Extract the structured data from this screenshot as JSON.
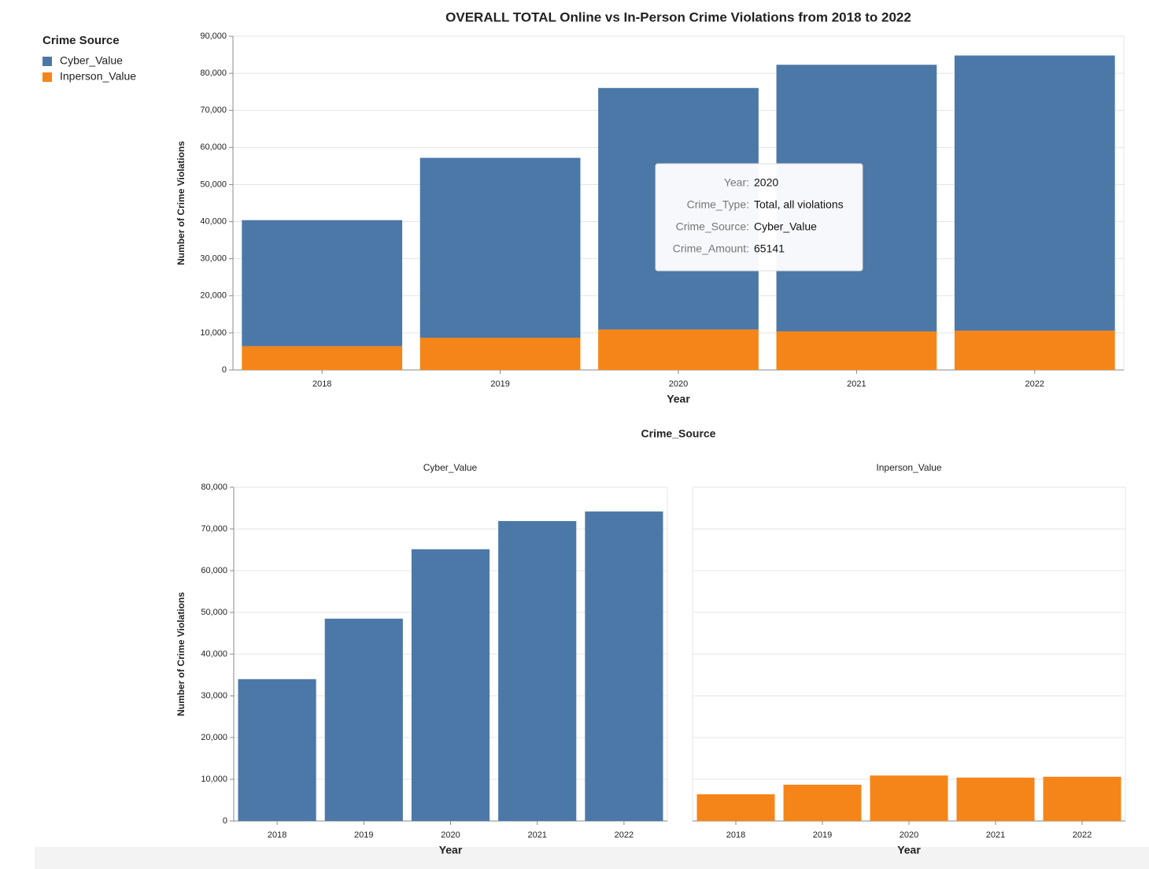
{
  "facet_title": "Crime_Source",
  "chart_data": [
    {
      "type": "stacked_bar",
      "title": "OVERALL TOTAL Online vs In-Person Crime Violations from 2018 to 2022",
      "x_label": "Year",
      "y_label": "Number of Crime Violations",
      "legend_title": "Crime Source",
      "categories": [
        "2018",
        "2019",
        "2020",
        "2021",
        "2022"
      ],
      "series": [
        {
          "name": "Cyber_Value",
          "color": "#4c78a8",
          "values": [
            34000,
            48500,
            65141,
            71900,
            74200
          ]
        },
        {
          "name": "Inperson_Value",
          "color": "#f58518",
          "values": [
            6400,
            8700,
            10900,
            10400,
            10600
          ]
        }
      ],
      "ylim": [
        0,
        90000
      ],
      "yticks": [
        0,
        {
          "value": 10000,
          "label": "10,000"
        },
        {
          "value": 20000,
          "label": "20,000"
        },
        {
          "value": 30000,
          "label": "30,000"
        },
        {
          "value": 40000,
          "label": "40,000"
        },
        {
          "value": 50000,
          "label": "50,000"
        },
        {
          "value": 60000,
          "label": "60,000"
        },
        {
          "value": 70000,
          "label": "70,000"
        },
        {
          "value": 80000,
          "label": "80,000"
        },
        {
          "value": 90000,
          "label": "90,000"
        }
      ],
      "grid": true,
      "tooltip": [
        {
          "key": "Year:",
          "value": "2020"
        },
        {
          "key": "Crime_Type:",
          "value": "Total, all violations"
        },
        {
          "key": "Crime_Source:",
          "value": "Cyber_Value"
        },
        {
          "key": "Crime_Amount:",
          "value": "65141"
        }
      ]
    },
    {
      "type": "bar",
      "title": "Cyber_Value",
      "x_label": "Year",
      "y_label": "Number of Crime Violations",
      "categories": [
        "2018",
        "2019",
        "2020",
        "2021",
        "2022"
      ],
      "values": [
        34000,
        48500,
        65141,
        71900,
        74200
      ],
      "color": "#4c78a8",
      "ylim": [
        0,
        80000
      ],
      "yticks": [
        0,
        {
          "value": 10000,
          "label": "10,000"
        },
        {
          "value": 20000,
          "label": "20,000"
        },
        {
          "value": 30000,
          "label": "30,000"
        },
        {
          "value": 40000,
          "label": "40,000"
        },
        {
          "value": 50000,
          "label": "50,000"
        },
        {
          "value": 60000,
          "label": "60,000"
        },
        {
          "value": 70000,
          "label": "70,000"
        },
        {
          "value": 80000,
          "label": "80,000"
        }
      ],
      "grid": true
    },
    {
      "type": "bar",
      "title": "Inperson_Value",
      "x_label": "Year",
      "categories": [
        "2018",
        "2019",
        "2020",
        "2021",
        "2022"
      ],
      "values": [
        6400,
        8700,
        10900,
        10400,
        10600
      ],
      "color": "#f58518",
      "ylim": [
        0,
        80000
      ],
      "yticks": [
        0,
        10000,
        20000,
        30000,
        40000,
        50000,
        60000,
        70000,
        80000
      ],
      "y_tick_labels": false,
      "grid": true
    }
  ]
}
